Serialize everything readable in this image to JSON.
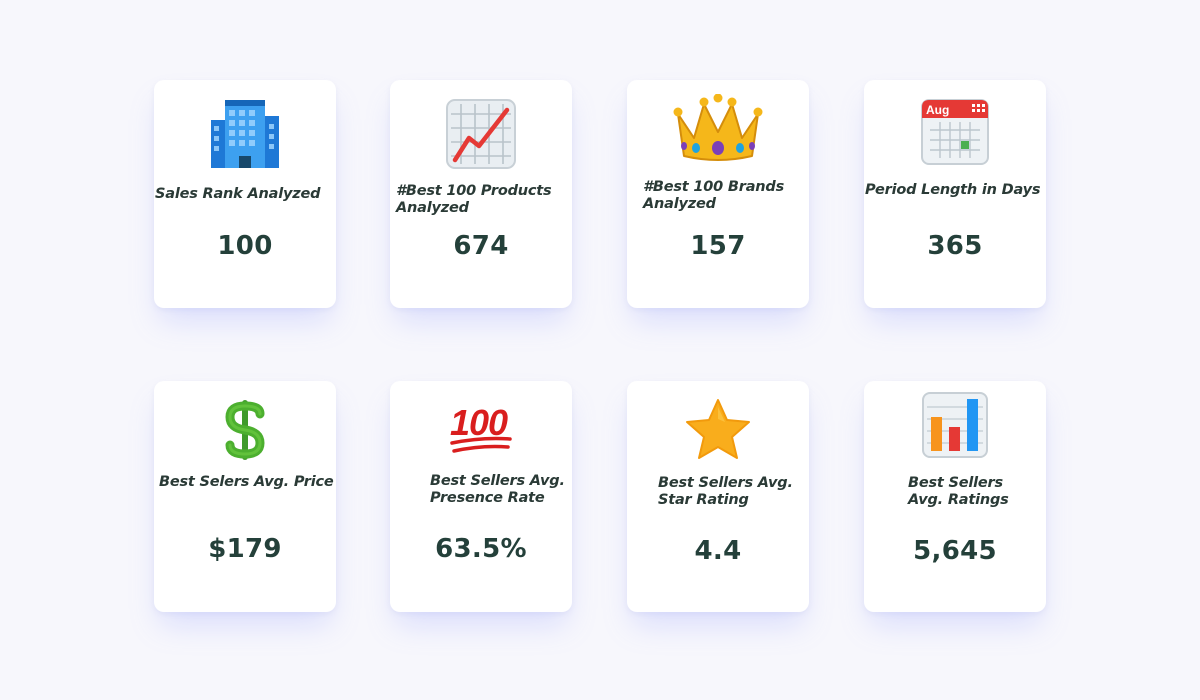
{
  "cards": [
    {
      "label": "Sales Rank Analyzed",
      "value": "100",
      "icon": "office-building-icon"
    },
    {
      "label_lines": [
        "#Best 100 Products",
        "Analyzed"
      ],
      "value": "674",
      "icon": "chart-increasing-icon"
    },
    {
      "label_lines": [
        "#Best 100 Brands",
        " Analyzed"
      ],
      "value": "157",
      "icon": "crown-icon"
    },
    {
      "label": "Period Length in Days",
      "value": "365",
      "icon": "calendar-icon",
      "calendar_month": "Aug"
    },
    {
      "label": "Best Selers Avg. Price",
      "value": "$179",
      "icon": "dollar-sign-icon"
    },
    {
      "label_lines": [
        "Best Sellers Avg.",
        "Presence Rate"
      ],
      "value": "63.5%",
      "icon": "hundred-points-icon",
      "icon_text": "100"
    },
    {
      "label_lines": [
        "Best Sellers Avg.",
        "Star Rating"
      ],
      "value": "4.4",
      "icon": "star-icon"
    },
    {
      "label_lines": [
        "Best Sellers",
        "Avg. Ratings"
      ],
      "value": "5,645",
      "icon": "bar-chart-icon"
    }
  ],
  "colors": {
    "background": "#f7f7fc",
    "card": "#ffffff",
    "text": "#2a3a36",
    "value_text": "#24403a",
    "shadow": "#8c96ff"
  }
}
